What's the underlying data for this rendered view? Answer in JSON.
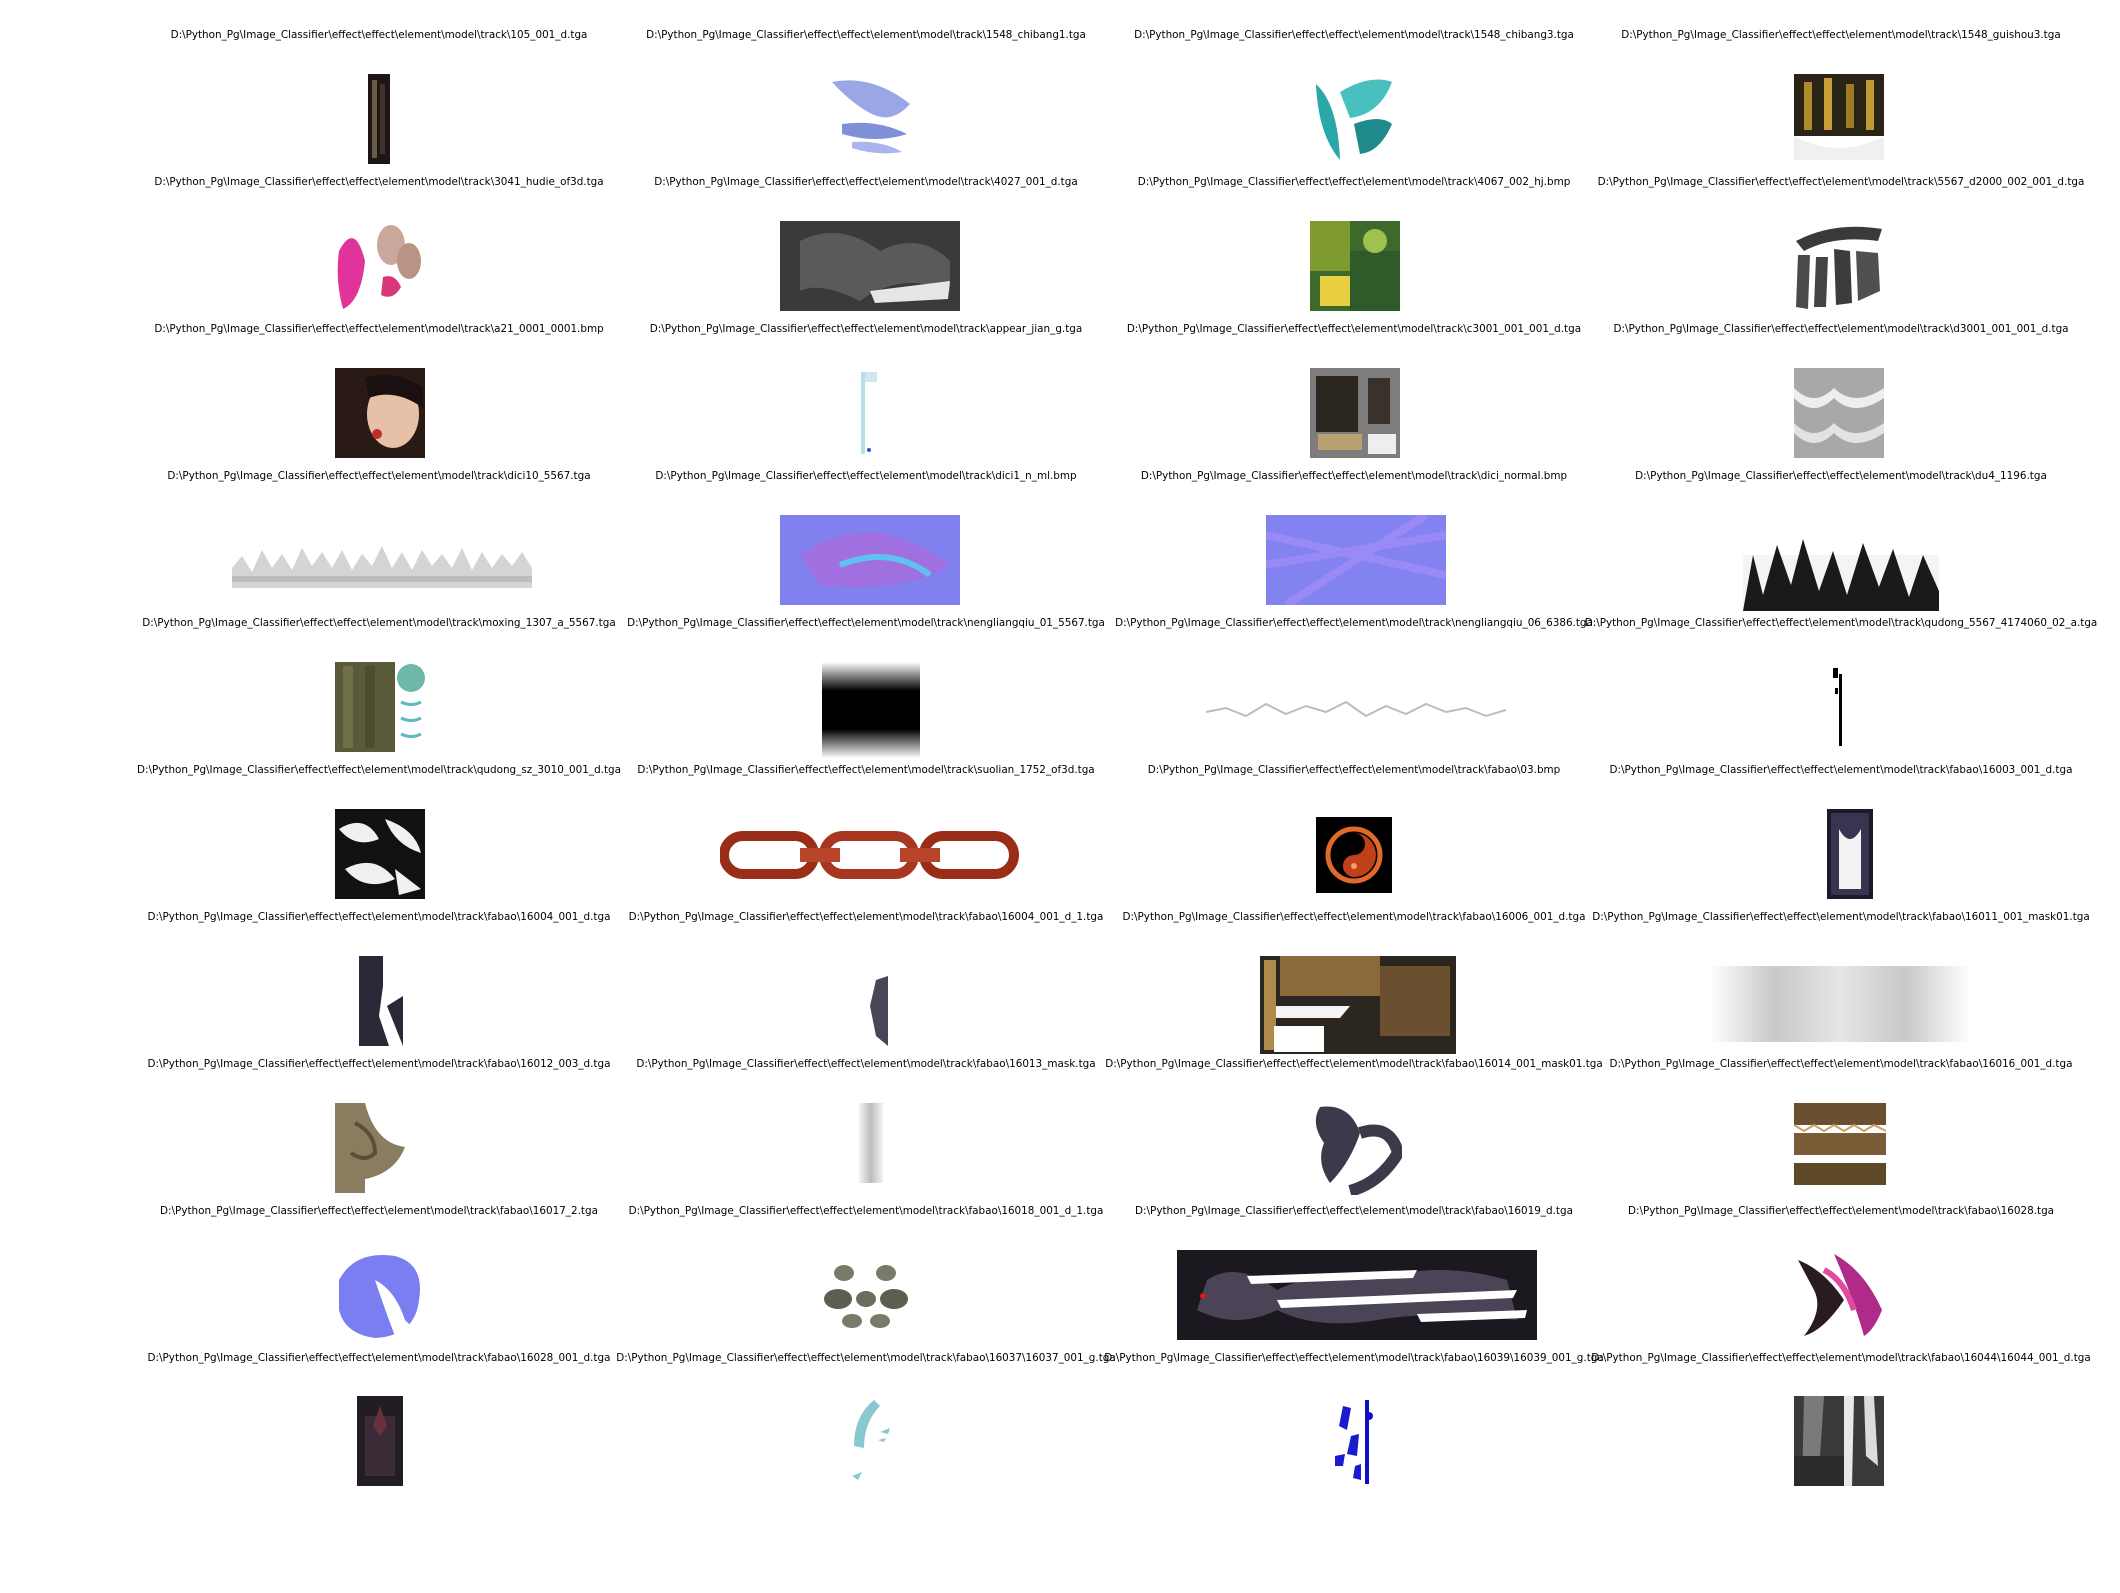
{
  "gallery": {
    "captions": [
      "D:\\Python_Pg\\Image_Classifier\\effect\\effect\\element\\model\\track\\105_001_d.tga",
      "D:\\Python_Pg\\Image_Classifier\\effect\\effect\\element\\model\\track\\1548_chibang1.tga",
      "D:\\Python_Pg\\Image_Classifier\\effect\\effect\\element\\model\\track\\1548_chibang3.tga",
      "D:\\Python_Pg\\Image_Classifier\\effect\\effect\\element\\model\\track\\1548_guishou3.tga",
      "D:\\Python_Pg\\Image_Classifier\\effect\\effect\\element\\model\\track\\3041_hudie_of3d.tga",
      "D:\\Python_Pg\\Image_Classifier\\effect\\effect\\element\\model\\track\\4027_001_d.tga",
      "D:\\Python_Pg\\Image_Classifier\\effect\\effect\\element\\model\\track\\4067_002_hj.bmp",
      "D:\\Python_Pg\\Image_Classifier\\effect\\effect\\element\\model\\track\\5567_d2000_002_001_d.tga",
      "D:\\Python_Pg\\Image_Classifier\\effect\\effect\\element\\model\\track\\a21_0001_0001.bmp",
      "D:\\Python_Pg\\Image_Classifier\\effect\\effect\\element\\model\\track\\appear_jian_g.tga",
      "D:\\Python_Pg\\Image_Classifier\\effect\\effect\\element\\model\\track\\c3001_001_001_d.tga",
      "D:\\Python_Pg\\Image_Classifier\\effect\\effect\\element\\model\\track\\d3001_001_001_d.tga",
      "D:\\Python_Pg\\Image_Classifier\\effect\\effect\\element\\model\\track\\dici10_5567.tga",
      "D:\\Python_Pg\\Image_Classifier\\effect\\effect\\element\\model\\track\\dici1_n_ml.bmp",
      "D:\\Python_Pg\\Image_Classifier\\effect\\effect\\element\\model\\track\\dici_normal.bmp",
      "D:\\Python_Pg\\Image_Classifier\\effect\\effect\\element\\model\\track\\du4_1196.tga",
      "D:\\Python_Pg\\Image_Classifier\\effect\\effect\\element\\model\\track\\moxing_1307_a_5567.tga",
      "D:\\Python_Pg\\Image_Classifier\\effect\\effect\\element\\model\\track\\nengliangqiu_01_5567.tga",
      "D:\\Python_Pg\\Image_Classifier\\effect\\effect\\element\\model\\track\\nengliangqiu_06_6386.tga",
      "D:\\Python_Pg\\Image_Classifier\\effect\\effect\\element\\model\\track\\qudong_5567_4174060_02_a.tga",
      "D:\\Python_Pg\\Image_Classifier\\effect\\effect\\element\\model\\track\\qudong_sz_3010_001_d.tga",
      "D:\\Python_Pg\\Image_Classifier\\effect\\effect\\element\\model\\track\\suolian_1752_of3d.tga",
      "D:\\Python_Pg\\Image_Classifier\\effect\\effect\\element\\model\\track\\fabao\\03.bmp",
      "D:\\Python_Pg\\Image_Classifier\\effect\\effect\\element\\model\\track\\fabao\\16003_001_d.tga",
      "D:\\Python_Pg\\Image_Classifier\\effect\\effect\\element\\model\\track\\fabao\\16004_001_d.tga",
      "D:\\Python_Pg\\Image_Classifier\\effect\\effect\\element\\model\\track\\fabao\\16004_001_d_1.tga",
      "D:\\Python_Pg\\Image_Classifier\\effect\\effect\\element\\model\\track\\fabao\\16006_001_d.tga",
      "D:\\Python_Pg\\Image_Classifier\\effect\\effect\\element\\model\\track\\fabao\\16011_001_mask01.tga",
      "D:\\Python_Pg\\Image_Classifier\\effect\\effect\\element\\model\\track\\fabao\\16012_003_d.tga",
      "D:\\Python_Pg\\Image_Classifier\\effect\\effect\\element\\model\\track\\fabao\\16013_mask.tga",
      "D:\\Python_Pg\\Image_Classifier\\effect\\effect\\element\\model\\track\\fabao\\16014_001_mask01.tga",
      "D:\\Python_Pg\\Image_Classifier\\effect\\effect\\element\\model\\track\\fabao\\16016_001_d.tga",
      "D:\\Python_Pg\\Image_Classifier\\effect\\effect\\element\\model\\track\\fabao\\16017_2.tga",
      "D:\\Python_Pg\\Image_Classifier\\effect\\effect\\element\\model\\track\\fabao\\16018_001_d_1.tga",
      "D:\\Python_Pg\\Image_Classifier\\effect\\effect\\element\\model\\track\\fabao\\16019_d.tga",
      "D:\\Python_Pg\\Image_Classifier\\effect\\effect\\element\\model\\track\\fabao\\16028.tga",
      "D:\\Python_Pg\\Image_Classifier\\effect\\effect\\element\\model\\track\\fabao\\16028_001_d.tga",
      "D:\\Python_Pg\\Image_Classifier\\effect\\effect\\element\\model\\track\\fabao\\16037\\16037_001_g.tga",
      "D:\\Python_Pg\\Image_Classifier\\effect\\effect\\element\\model\\track\\fabao\\16039\\16039_001_g.tga",
      "D:\\Python_Pg\\Image_Classifier\\effect\\effect\\element\\model\\track\\fabao\\16044\\16044_001_d.tga"
    ]
  }
}
